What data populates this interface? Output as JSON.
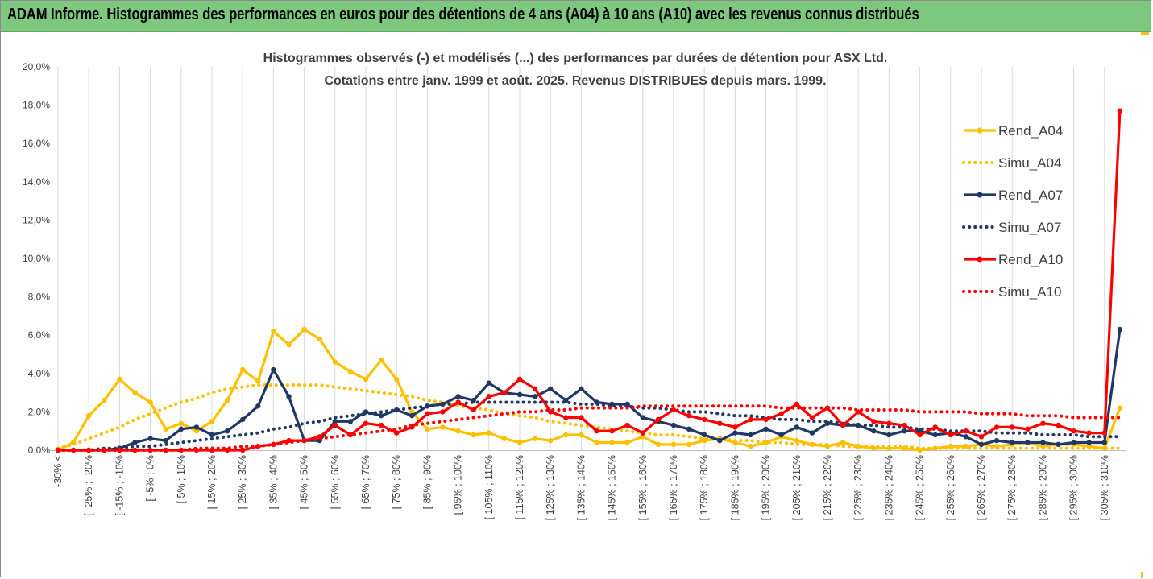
{
  "banner": {
    "title": "ADAM Informe. Histogrammes des performances en euros pour des détentions de 4 ans (A04) à 10 ans (A10) avec les revenus connus distribués"
  },
  "colors": {
    "banner_bg": "#7dc87e",
    "A04": "#ffc000",
    "A07": "#1f3864",
    "A10": "#ff0000",
    "grid": "#d9d9d9"
  },
  "chart_data": {
    "type": "line",
    "title_lines": [
      "Histogrammes observés (-) et modélisés (...) des performances par durées de détention pour ASX Ltd.",
      "Cotations entre janv. 1999 et août. 2025. Revenus DISTRIBUES depuis mars. 1999."
    ],
    "y_ticks": [
      "0,0%",
      "2,0%",
      "4,0%",
      "6,0%",
      "8,0%",
      "10,0%",
      "12,0%",
      "14,0%",
      "16,0%",
      "18,0%",
      "20,0%"
    ],
    "ylim": [
      0,
      20
    ],
    "y_unit": "%",
    "grid": "vertical",
    "legend_position": "right",
    "x_tick_labels": [
      "-30% <",
      "[ -25% ; -20%",
      "[ -15% ; -10%",
      "[ -5% ; 0%",
      "[ 5% ; 10%",
      "[ 15% ; 20%",
      "[ 25% ; 30%",
      "[ 35% ; 40%",
      "[ 45% ; 50%",
      "[ 55% ; 60%",
      "[ 65% ; 70%",
      "[ 75% ; 80%",
      "[ 85% ; 90%",
      "[ 95% ; 100%",
      "[ 105% ; 110%",
      "[ 115% ; 120%",
      "[ 125% ; 130%",
      "[ 135% ; 140%",
      "[ 145% ; 150%",
      "[ 155% ; 160%",
      "[ 165% ; 170%",
      "[ 175% ; 180%",
      "[ 185% ; 190%",
      "[ 195% ; 200%",
      "[ 205% ; 210%",
      "[ 215% ; 220%",
      "[ 225% ; 230%",
      "[ 235% ; 240%",
      "[ 245% ; 250%",
      "[ 255% ; 260%",
      "[ 265% ; 270%",
      "[ 275% ; 280%",
      "[ 285% ; 290%",
      "[ 295% ; 300%",
      "[ 305% ; 310%"
    ],
    "category_count": 70,
    "series": [
      {
        "name": "Rend_A04",
        "color": "#ffc000",
        "style": "solid",
        "marker": true,
        "values": [
          0.0,
          0.4,
          1.8,
          2.6,
          3.7,
          3.0,
          2.5,
          1.1,
          1.4,
          1.0,
          1.5,
          2.6,
          4.2,
          3.6,
          6.2,
          5.5,
          6.3,
          5.8,
          4.6,
          4.1,
          3.7,
          4.7,
          3.7,
          2.0,
          1.1,
          1.2,
          1.0,
          0.8,
          0.9,
          0.6,
          0.4,
          0.6,
          0.5,
          0.8,
          0.8,
          0.4,
          0.4,
          0.4,
          0.7,
          0.3,
          0.3,
          0.3,
          0.5,
          0.6,
          0.4,
          0.2,
          0.4,
          0.7,
          0.5,
          0.3,
          0.2,
          0.4,
          0.2,
          0.1,
          0.1,
          0.1,
          0.0,
          0.1,
          0.2,
          0.2,
          0.3,
          0.2,
          0.3,
          0.4,
          0.2,
          0.3,
          0.3,
          0.2,
          0.1,
          2.2
        ]
      },
      {
        "name": "Simu_A04",
        "color": "#ffc000",
        "style": "dotted",
        "marker": false,
        "values": [
          0.1,
          0.3,
          0.6,
          0.9,
          1.2,
          1.6,
          1.9,
          2.2,
          2.5,
          2.7,
          3.0,
          3.2,
          3.3,
          3.4,
          3.4,
          3.4,
          3.4,
          3.4,
          3.3,
          3.2,
          3.1,
          3.0,
          2.9,
          2.8,
          2.6,
          2.5,
          2.3,
          2.2,
          2.1,
          1.9,
          1.8,
          1.7,
          1.5,
          1.4,
          1.3,
          1.2,
          1.1,
          1.0,
          0.9,
          0.8,
          0.8,
          0.7,
          0.6,
          0.6,
          0.5,
          0.5,
          0.4,
          0.4,
          0.3,
          0.3,
          0.3,
          0.2,
          0.2,
          0.2,
          0.2,
          0.2,
          0.1,
          0.1,
          0.1,
          0.1,
          0.1,
          0.1,
          0.1,
          0.1,
          0.1,
          0.1,
          0.1,
          0.1,
          0.1,
          0.1
        ]
      },
      {
        "name": "Rend_A07",
        "color": "#1f3864",
        "style": "solid",
        "marker": true,
        "values": [
          0.0,
          0.0,
          0.0,
          0.0,
          0.1,
          0.4,
          0.6,
          0.5,
          1.1,
          1.2,
          0.8,
          1.0,
          1.6,
          2.3,
          4.2,
          2.8,
          0.5,
          0.5,
          1.5,
          1.5,
          2.0,
          1.8,
          2.1,
          1.8,
          2.3,
          2.4,
          2.8,
          2.6,
          3.5,
          3.0,
          2.9,
          2.8,
          3.2,
          2.6,
          3.2,
          2.5,
          2.4,
          2.4,
          1.7,
          1.5,
          1.3,
          1.1,
          0.8,
          0.5,
          0.9,
          0.8,
          1.1,
          0.8,
          1.2,
          0.9,
          1.4,
          1.3,
          1.3,
          1.0,
          0.8,
          1.0,
          1.0,
          0.8,
          0.9,
          0.7,
          0.3,
          0.5,
          0.4,
          0.4,
          0.4,
          0.3,
          0.4,
          0.4,
          0.4,
          6.3
        ]
      },
      {
        "name": "Simu_A07",
        "color": "#1f3864",
        "style": "dotted",
        "marker": false,
        "values": [
          0.0,
          0.0,
          0.0,
          0.1,
          0.1,
          0.2,
          0.2,
          0.3,
          0.4,
          0.5,
          0.6,
          0.7,
          0.8,
          0.9,
          1.1,
          1.2,
          1.4,
          1.5,
          1.7,
          1.8,
          1.9,
          2.0,
          2.1,
          2.2,
          2.3,
          2.4,
          2.4,
          2.5,
          2.5,
          2.5,
          2.5,
          2.5,
          2.5,
          2.5,
          2.4,
          2.4,
          2.3,
          2.3,
          2.2,
          2.2,
          2.1,
          2.0,
          2.0,
          1.9,
          1.8,
          1.8,
          1.7,
          1.6,
          1.6,
          1.5,
          1.5,
          1.4,
          1.3,
          1.3,
          1.2,
          1.2,
          1.1,
          1.1,
          1.0,
          1.0,
          1.0,
          0.9,
          0.9,
          0.9,
          0.8,
          0.8,
          0.8,
          0.7,
          0.7,
          0.7
        ]
      },
      {
        "name": "Rend_A10",
        "color": "#ff0000",
        "style": "solid",
        "marker": true,
        "values": [
          0.0,
          0.0,
          0.0,
          0.0,
          0.0,
          0.0,
          0.0,
          0.0,
          0.0,
          0.0,
          0.0,
          0.0,
          0.0,
          0.2,
          0.3,
          0.5,
          0.5,
          0.7,
          1.3,
          0.8,
          1.4,
          1.3,
          0.9,
          1.2,
          1.9,
          2.0,
          2.5,
          2.1,
          2.8,
          3.0,
          3.7,
          3.2,
          2.0,
          1.7,
          1.7,
          1.0,
          1.0,
          1.3,
          0.9,
          1.6,
          2.1,
          1.8,
          1.6,
          1.4,
          1.2,
          1.6,
          1.6,
          1.9,
          2.4,
          1.7,
          2.2,
          1.3,
          2.0,
          1.5,
          1.4,
          1.3,
          0.8,
          1.2,
          0.8,
          1.0,
          0.7,
          1.2,
          1.2,
          1.1,
          1.4,
          1.3,
          1.0,
          0.9,
          0.9,
          17.7
        ]
      },
      {
        "name": "Simu_A10",
        "color": "#ff0000",
        "style": "dotted",
        "marker": false,
        "values": [
          0.0,
          0.0,
          0.0,
          0.0,
          0.0,
          0.0,
          0.0,
          0.0,
          0.0,
          0.1,
          0.1,
          0.1,
          0.2,
          0.2,
          0.3,
          0.4,
          0.5,
          0.6,
          0.7,
          0.8,
          0.9,
          1.0,
          1.1,
          1.3,
          1.4,
          1.5,
          1.6,
          1.7,
          1.8,
          1.9,
          2.0,
          2.0,
          2.1,
          2.1,
          2.2,
          2.2,
          2.2,
          2.2,
          2.3,
          2.3,
          2.3,
          2.3,
          2.3,
          2.3,
          2.3,
          2.3,
          2.3,
          2.2,
          2.2,
          2.2,
          2.2,
          2.2,
          2.1,
          2.1,
          2.1,
          2.1,
          2.0,
          2.0,
          2.0,
          2.0,
          1.9,
          1.9,
          1.9,
          1.8,
          1.8,
          1.8,
          1.7,
          1.7,
          1.7,
          1.7
        ]
      }
    ]
  }
}
